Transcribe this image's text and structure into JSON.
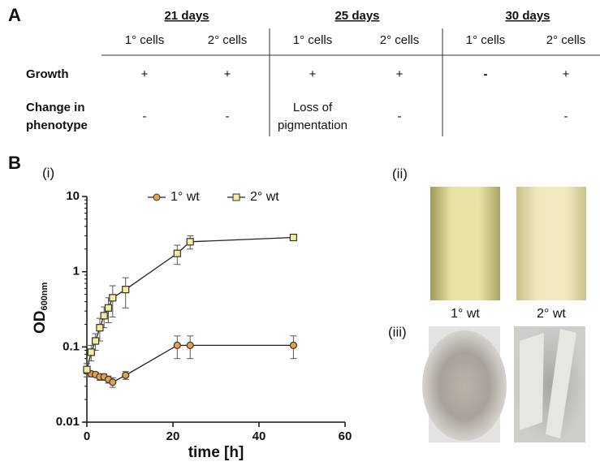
{
  "table": {
    "label": "A",
    "groups": [
      "21 days",
      "25 days",
      "30 days"
    ],
    "columns": [
      "1° cells",
      "2° cells",
      "1° cells",
      "2° cells",
      "1° cells",
      "2° cells"
    ],
    "rows": [
      {
        "label": [
          "Growth"
        ],
        "cells": [
          "+",
          "+",
          "+",
          "+",
          "-",
          "+"
        ]
      },
      {
        "label": [
          "Change in",
          "phenotype"
        ],
        "cells": [
          "-",
          "-",
          [
            "Loss of",
            "pigmentation"
          ],
          "-",
          null,
          "-"
        ]
      }
    ]
  },
  "panel_b": {
    "label": "B",
    "sub_i": "(i)",
    "sub_ii": "(ii)",
    "sub_iii": "(iii)",
    "photo_labels": [
      "1° wt",
      "2° wt"
    ]
  },
  "chart_data": {
    "type": "line",
    "ylabel": "OD",
    "ylabel_sub": "600nm",
    "xlabel": "time [h]",
    "x": [
      0,
      1,
      2,
      3,
      4,
      5,
      6,
      9,
      21,
      24,
      48
    ],
    "xlim": [
      0,
      60
    ],
    "xticks": [
      0,
      20,
      40,
      60
    ],
    "ylim": [
      0.01,
      10
    ],
    "yticks": [
      0.01,
      0.1,
      1,
      10
    ],
    "log_y": true,
    "legend": "top",
    "series": [
      {
        "name": "1° wt",
        "color": "#e8a048",
        "marker": "circle",
        "values": [
          0.048,
          0.044,
          0.043,
          0.04,
          0.04,
          0.037,
          0.034,
          0.042,
          0.105,
          0.105,
          0.105
        ],
        "errors": [
          0.004,
          0.003,
          0.003,
          0.004,
          0.004,
          0.004,
          0.005,
          0.005,
          0.035,
          0.035,
          0.035
        ]
      },
      {
        "name": "2° wt",
        "color": "#f3ee9e",
        "marker": "square",
        "values": [
          0.05,
          0.085,
          0.12,
          0.18,
          0.26,
          0.33,
          0.45,
          0.58,
          1.75,
          2.5,
          2.85
        ],
        "errors": [
          0.01,
          0.02,
          0.03,
          0.06,
          0.08,
          0.12,
          0.2,
          0.25,
          0.5,
          0.5,
          0.1
        ]
      }
    ]
  }
}
